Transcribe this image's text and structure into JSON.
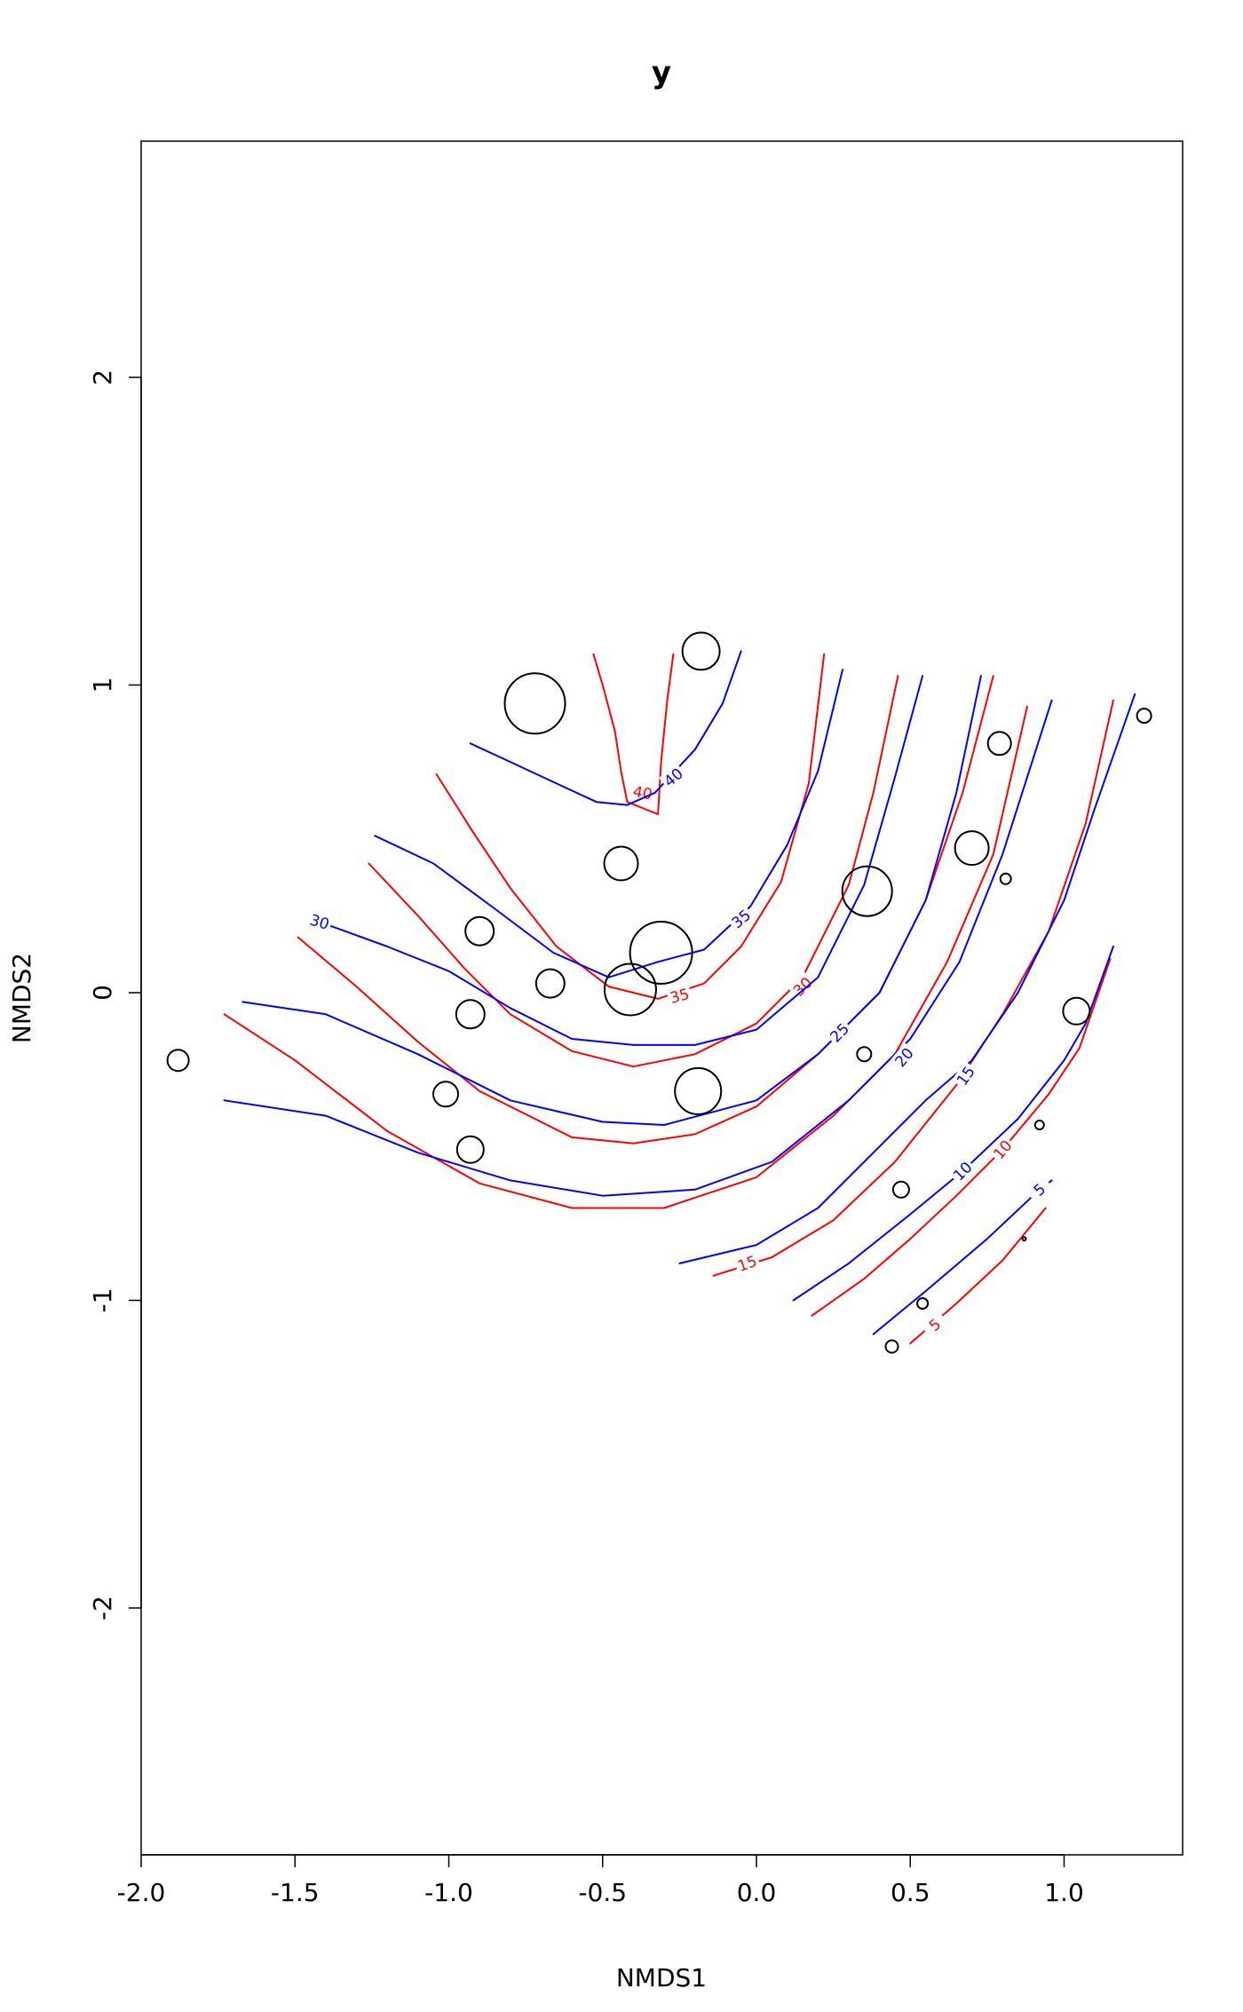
{
  "chart_data": {
    "type": "scatter",
    "title": "y",
    "xlabel": "NMDS1",
    "ylabel": "NMDS2",
    "xlim": [
      -2.0,
      1.4
    ],
    "ylim": [
      -2.8,
      2.7
    ],
    "x_ticks": [
      -2.0,
      -1.5,
      -1.0,
      -0.5,
      0.0,
      0.5,
      1.0
    ],
    "x_tick_labels": [
      "-2.0",
      "-1.5",
      "-1.0",
      "-0.5",
      "0.0",
      "0.5",
      "1.0"
    ],
    "y_ticks": [
      -2,
      -1,
      0,
      1,
      2
    ],
    "y_tick_labels": [
      "-2",
      "-1",
      "0",
      "1",
      "2"
    ],
    "grid": false,
    "colors": {
      "points": "#000000",
      "series_a": "#ff0000",
      "series_b": "#0000ff"
    },
    "points": [
      {
        "x": -1.88,
        "y": -0.22,
        "size": 12
      },
      {
        "x": -0.72,
        "y": 0.94,
        "size": 34
      },
      {
        "x": -0.18,
        "y": 1.11,
        "size": 21
      },
      {
        "x": -0.44,
        "y": 0.42,
        "size": 19
      },
      {
        "x": -0.9,
        "y": 0.2,
        "size": 16
      },
      {
        "x": -0.67,
        "y": 0.03,
        "size": 16
      },
      {
        "x": -0.31,
        "y": 0.13,
        "size": 35
      },
      {
        "x": -0.41,
        "y": 0.01,
        "size": 29
      },
      {
        "x": -0.93,
        "y": -0.07,
        "size": 16
      },
      {
        "x": -1.01,
        "y": -0.33,
        "size": 14
      },
      {
        "x": -0.93,
        "y": -0.51,
        "size": 15
      },
      {
        "x": -0.19,
        "y": -0.32,
        "size": 26
      },
      {
        "x": 0.36,
        "y": 0.33,
        "size": 28
      },
      {
        "x": 0.35,
        "y": -0.2,
        "size": 8
      },
      {
        "x": 0.7,
        "y": 0.47,
        "size": 19
      },
      {
        "x": 0.79,
        "y": 0.81,
        "size": 13
      },
      {
        "x": 0.81,
        "y": 0.37,
        "size": 6
      },
      {
        "x": 1.26,
        "y": 0.9,
        "size": 8
      },
      {
        "x": 1.04,
        "y": -0.06,
        "size": 15
      },
      {
        "x": 0.92,
        "y": -0.43,
        "size": 5
      },
      {
        "x": 0.47,
        "y": -0.64,
        "size": 9
      },
      {
        "x": 0.87,
        "y": -0.8,
        "size": 2
      },
      {
        "x": 0.54,
        "y": -1.01,
        "size": 6
      },
      {
        "x": 0.44,
        "y": -1.15,
        "size": 7
      }
    ],
    "contours": [
      {
        "series": "a",
        "level": "40",
        "label": "40",
        "label_at": [
          -0.37,
          0.65
        ],
        "label_angle": 10,
        "points": [
          [
            -0.53,
            1.1
          ],
          [
            -0.5,
            1.0
          ],
          [
            -0.46,
            0.85
          ],
          [
            -0.44,
            0.72
          ],
          [
            -0.42,
            0.62
          ],
          [
            -0.32,
            0.58
          ],
          [
            -0.31,
            0.75
          ],
          [
            -0.29,
            0.95
          ],
          [
            -0.27,
            1.1
          ]
        ]
      },
      {
        "series": "b",
        "level": "40",
        "label": "40",
        "label_at": [
          -0.27,
          0.7
        ],
        "label_angle": -40,
        "points": [
          [
            -0.93,
            0.81
          ],
          [
            -0.8,
            0.75
          ],
          [
            -0.65,
            0.68
          ],
          [
            -0.52,
            0.62
          ],
          [
            -0.42,
            0.61
          ],
          [
            -0.33,
            0.65
          ],
          [
            -0.2,
            0.79
          ],
          [
            -0.11,
            0.94
          ],
          [
            -0.05,
            1.11
          ]
        ]
      },
      {
        "series": "a",
        "level": "35",
        "label": "35",
        "label_at": [
          -0.25,
          -0.01
        ],
        "label_angle": -15,
        "points": [
          [
            -1.04,
            0.71
          ],
          [
            -0.92,
            0.52
          ],
          [
            -0.8,
            0.34
          ],
          [
            -0.65,
            0.15
          ],
          [
            -0.48,
            0.02
          ],
          [
            -0.32,
            -0.02
          ],
          [
            -0.17,
            0.03
          ],
          [
            -0.05,
            0.15
          ],
          [
            0.08,
            0.36
          ],
          [
            0.17,
            0.68
          ],
          [
            0.22,
            1.1
          ]
        ]
      },
      {
        "series": "b",
        "level": "35",
        "label": "35",
        "label_at": [
          -0.05,
          0.24
        ],
        "label_angle": -40,
        "points": [
          [
            -1.24,
            0.51
          ],
          [
            -1.05,
            0.42
          ],
          [
            -0.86,
            0.28
          ],
          [
            -0.66,
            0.13
          ],
          [
            -0.48,
            0.05
          ],
          [
            -0.32,
            0.1
          ],
          [
            -0.17,
            0.14
          ],
          [
            -0.02,
            0.28
          ],
          [
            0.1,
            0.48
          ],
          [
            0.2,
            0.72
          ],
          [
            0.28,
            1.05
          ]
        ]
      },
      {
        "series": "a",
        "level": "30",
        "label": "30",
        "label_at": [
          0.15,
          0.02
        ],
        "label_angle": -45,
        "points": [
          [
            -1.26,
            0.42
          ],
          [
            -1.1,
            0.25
          ],
          [
            -0.95,
            0.08
          ],
          [
            -0.8,
            -0.07
          ],
          [
            -0.6,
            -0.19
          ],
          [
            -0.4,
            -0.24
          ],
          [
            -0.2,
            -0.2
          ],
          [
            0.0,
            -0.1
          ],
          [
            0.15,
            0.05
          ],
          [
            0.3,
            0.35
          ],
          [
            0.38,
            0.65
          ],
          [
            0.46,
            1.03
          ]
        ]
      },
      {
        "series": "b",
        "level": "30",
        "label": "30",
        "label_at": [
          -1.42,
          0.23
        ],
        "label_angle": 17,
        "points": [
          [
            -1.42,
            0.23
          ],
          [
            -1.2,
            0.15
          ],
          [
            -1.0,
            0.07
          ],
          [
            -0.8,
            -0.05
          ],
          [
            -0.6,
            -0.15
          ],
          [
            -0.4,
            -0.17
          ],
          [
            -0.2,
            -0.17
          ],
          [
            0.0,
            -0.12
          ],
          [
            0.2,
            0.05
          ],
          [
            0.35,
            0.35
          ],
          [
            0.45,
            0.7
          ],
          [
            0.54,
            1.03
          ]
        ]
      },
      {
        "series": "a",
        "level": "25",
        "label": "25",
        "label_at": [
          0.27,
          -0.13
        ],
        "label_angle": -45,
        "points": [
          [
            -1.49,
            0.18
          ],
          [
            -1.3,
            0.02
          ],
          [
            -1.1,
            -0.16
          ],
          [
            -0.9,
            -0.32
          ],
          [
            -0.6,
            -0.47
          ],
          [
            -0.4,
            -0.49
          ],
          [
            -0.2,
            -0.46
          ],
          [
            0.0,
            -0.37
          ],
          [
            0.2,
            -0.2
          ],
          [
            0.4,
            0.0
          ],
          [
            0.55,
            0.3
          ],
          [
            0.67,
            0.65
          ],
          [
            0.77,
            1.03
          ]
        ]
      },
      {
        "series": "b",
        "level": "25",
        "label": "25",
        "label_at": [
          0.27,
          -0.13
        ],
        "label_angle": -45,
        "points": [
          [
            -1.67,
            -0.03
          ],
          [
            -1.4,
            -0.07
          ],
          [
            -1.1,
            -0.2
          ],
          [
            -0.8,
            -0.35
          ],
          [
            -0.5,
            -0.42
          ],
          [
            -0.3,
            -0.43
          ],
          [
            0.0,
            -0.35
          ],
          [
            0.2,
            -0.2
          ],
          [
            0.4,
            0.0
          ],
          [
            0.55,
            0.3
          ],
          [
            0.65,
            0.65
          ],
          [
            0.73,
            1.03
          ]
        ]
      },
      {
        "series": "a",
        "level": "20",
        "label": "20",
        "label_at": [
          0.48,
          -0.21
        ],
        "label_angle": -50,
        "points": [
          [
            -1.73,
            -0.07
          ],
          [
            -1.5,
            -0.22
          ],
          [
            -1.2,
            -0.45
          ],
          [
            -0.9,
            -0.62
          ],
          [
            -0.6,
            -0.7
          ],
          [
            -0.3,
            -0.7
          ],
          [
            0.0,
            -0.6
          ],
          [
            0.25,
            -0.4
          ],
          [
            0.45,
            -0.2
          ],
          [
            0.62,
            0.1
          ],
          [
            0.77,
            0.45
          ],
          [
            0.88,
            0.93
          ]
        ]
      },
      {
        "series": "b",
        "level": "20",
        "label": "20",
        "label_at": [
          0.48,
          -0.21
        ],
        "label_angle": -50,
        "points": [
          [
            -1.73,
            -0.35
          ],
          [
            -1.4,
            -0.4
          ],
          [
            -1.1,
            -0.52
          ],
          [
            -0.8,
            -0.61
          ],
          [
            -0.5,
            -0.66
          ],
          [
            -0.2,
            -0.64
          ],
          [
            0.05,
            -0.55
          ],
          [
            0.3,
            -0.35
          ],
          [
            0.5,
            -0.15
          ],
          [
            0.66,
            0.1
          ],
          [
            0.8,
            0.45
          ],
          [
            0.96,
            0.95
          ]
        ]
      },
      {
        "series": "a",
        "level": "15",
        "label": "15",
        "label_at": [
          -0.03,
          -0.88
        ],
        "label_angle": -20,
        "points": [
          [
            -0.14,
            -0.92
          ],
          [
            0.05,
            -0.86
          ],
          [
            0.25,
            -0.74
          ],
          [
            0.45,
            -0.55
          ],
          [
            0.65,
            -0.3
          ],
          [
            0.8,
            -0.07
          ],
          [
            0.95,
            0.2
          ],
          [
            1.07,
            0.55
          ],
          [
            1.16,
            0.95
          ]
        ]
      },
      {
        "series": "b",
        "level": "15",
        "label": "15",
        "label_at": [
          0.68,
          -0.27
        ],
        "label_angle": -55,
        "points": [
          [
            -0.25,
            -0.88
          ],
          [
            0.0,
            -0.82
          ],
          [
            0.2,
            -0.7
          ],
          [
            0.4,
            -0.5
          ],
          [
            0.55,
            -0.35
          ],
          [
            0.7,
            -0.22
          ],
          [
            0.85,
            0.0
          ],
          [
            1.0,
            0.3
          ],
          [
            1.1,
            0.6
          ],
          [
            1.23,
            0.97
          ]
        ]
      },
      {
        "series": "a",
        "level": "10",
        "label": "10",
        "label_at": [
          0.8,
          -0.51
        ],
        "label_angle": -50,
        "points": [
          [
            0.18,
            -1.05
          ],
          [
            0.35,
            -0.93
          ],
          [
            0.5,
            -0.8
          ],
          [
            0.65,
            -0.66
          ],
          [
            0.8,
            -0.51
          ],
          [
            0.95,
            -0.33
          ],
          [
            1.05,
            -0.18
          ],
          [
            1.15,
            0.11
          ]
        ]
      },
      {
        "series": "b",
        "level": "10",
        "label": "10",
        "label_at": [
          0.67,
          -0.58
        ],
        "label_angle": -45,
        "points": [
          [
            0.12,
            -1.0
          ],
          [
            0.3,
            -0.88
          ],
          [
            0.5,
            -0.72
          ],
          [
            0.67,
            -0.58
          ],
          [
            0.85,
            -0.41
          ],
          [
            1.0,
            -0.22
          ],
          [
            1.07,
            -0.1
          ],
          [
            1.16,
            0.15
          ]
        ]
      },
      {
        "series": "a",
        "level": "5",
        "label": "5",
        "label_at": [
          0.58,
          -1.08
        ],
        "label_angle": -40,
        "points": [
          [
            0.5,
            -1.14
          ],
          [
            0.65,
            -1.01
          ],
          [
            0.8,
            -0.87
          ],
          [
            0.94,
            -0.7
          ]
        ]
      },
      {
        "series": "b",
        "level": "5",
        "label": "5",
        "label_at": [
          0.92,
          -0.64
        ],
        "label_angle": -40,
        "points": [
          [
            0.38,
            -1.11
          ],
          [
            0.55,
            -0.97
          ],
          [
            0.75,
            -0.8
          ],
          [
            0.92,
            -0.64
          ],
          [
            0.96,
            -0.61
          ]
        ]
      }
    ]
  }
}
